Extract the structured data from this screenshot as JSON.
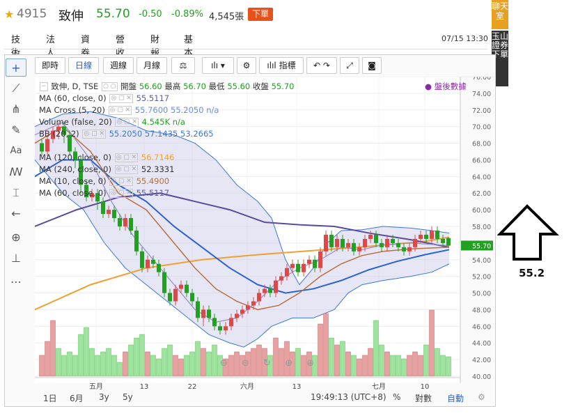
{
  "header": {
    "code": "4915",
    "name": "致伸",
    "price": "55.70",
    "change": "-0.50",
    "change_pct": "-0.89%",
    "volume": "4,545張",
    "order_button": "下單"
  },
  "tabs": [
    "技術",
    "法人",
    "資券",
    "營收",
    "財報",
    "基本"
  ],
  "datetime": "07/15 13:30",
  "side_badges": {
    "chat": "聊天室",
    "broker": "玉山證券下單"
  },
  "toolbar": {
    "intraday": "即時",
    "daily": "日線",
    "weekly": "週線",
    "monthly": "月線",
    "indicators": "指標"
  },
  "legend": {
    "main": {
      "name": "致伸, D, TSE",
      "open_label": "開盤",
      "open": "56.60",
      "high_label": "最高",
      "high": "56.70",
      "low_label": "最低",
      "low": "55.60",
      "close_label": "收盤",
      "close": "55.70",
      "after_hours": "盤後數據"
    },
    "rows": [
      {
        "label": "MA (60, close, 0)",
        "value": "55.5117",
        "color": "#5b5ea6"
      },
      {
        "label": "MA Cross (5, 20)",
        "value": "55.7600 55.2050 n/a",
        "color": "#6a8fd8"
      },
      {
        "label": "Volume (false, 20)",
        "value": "4.545K n/a",
        "color": "#21a021"
      },
      {
        "label": "BB (20, 2)",
        "value": "55.2050 57.1435 53.2665",
        "color": "#3a78d8"
      },
      {
        "label": "MA (120, close, 0)",
        "value": "56.7146",
        "color": "#f0a030"
      },
      {
        "label": "MA (240, close, 0)",
        "value": "52.3331",
        "color": "#333333"
      },
      {
        "label": "MA (10, close, 0)",
        "value": "55.4900",
        "color": "#b87040"
      },
      {
        "label": "MA (60, close, 0)",
        "value": "55.5117",
        "color": "#5b5ea6"
      }
    ]
  },
  "price_axis": [
    "76.00",
    "74.00",
    "72.00",
    "70.00",
    "68.00",
    "66.00",
    "64.00",
    "62.00",
    "60.00",
    "58.00",
    "56.00",
    "54.00",
    "52.00",
    "50.00",
    "48.00",
    "46.00",
    "44.00",
    "42.00",
    "40.00"
  ],
  "current_price_label": "55.70",
  "time_axis": [
    "五月",
    "13",
    "22",
    "六月",
    "13",
    "七月",
    "10"
  ],
  "bottom_bar": {
    "ranges": [
      "1日",
      "6月",
      "3y",
      "5y"
    ],
    "clock": "19:49:13 (UTC+8)",
    "pct": "%",
    "log": "對數",
    "auto": "自動"
  },
  "annotation": {
    "value": "55.2"
  },
  "colors": {
    "up": "#e04848",
    "down": "#21a021",
    "accent": "#2a62d2",
    "bb_fill": "#c8c8e8"
  }
}
